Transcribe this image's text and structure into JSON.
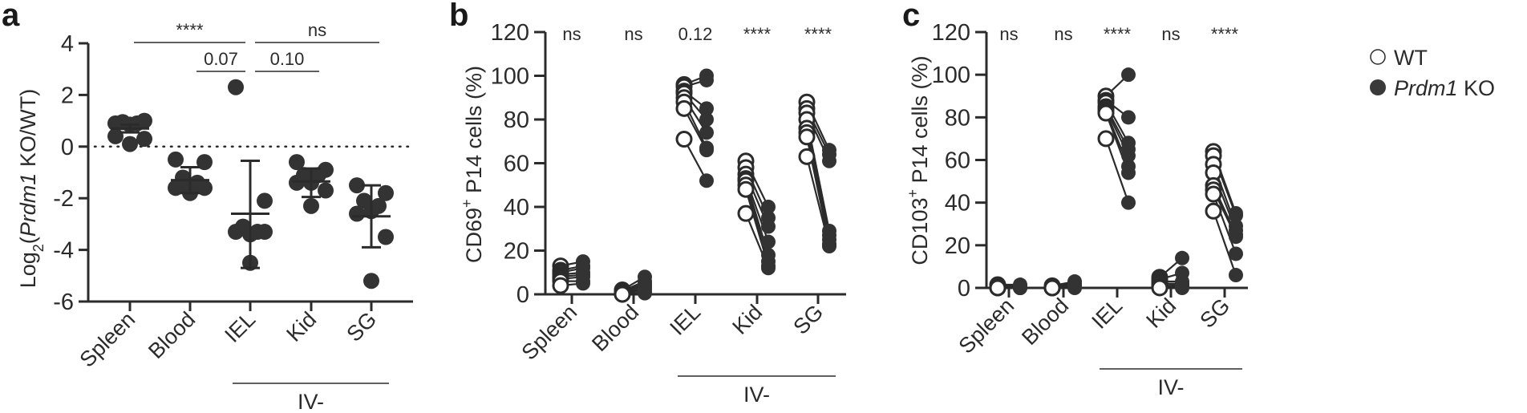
{
  "figure": {
    "panel_labels": [
      "a",
      "b",
      "c"
    ],
    "colors": {
      "ink": "#2b2b2b",
      "background": "#ffffff",
      "open_marker_fill": "#ffffff"
    },
    "legend": {
      "items": [
        {
          "label": "WT",
          "italic_prefix": "",
          "marker": "open-circle"
        },
        {
          "label": "KO",
          "italic_prefix": "Prdm1",
          "marker": "filled-circle"
        }
      ]
    },
    "group_bracket_label": "IV-"
  },
  "chart_data": [
    {
      "panel": "a",
      "type": "scatter",
      "title": "",
      "ylabel": "Log2(Prdm1 KO/WT)",
      "ylabel_parts": {
        "prefix": "Log",
        "sub": "2",
        "open": "(",
        "italic": "Prdm1",
        "rest": " KO/WT)"
      },
      "xlabel": "",
      "ylim": [
        -6,
        4
      ],
      "yticks": [
        4,
        2,
        0,
        -2,
        -4,
        -6
      ],
      "reference_line": {
        "y": 0,
        "style": "dotted"
      },
      "categories": [
        "Spleen",
        "Blood",
        "IEL",
        "Kid",
        "SG"
      ],
      "group_bracket": {
        "label": "IV-",
        "categories": [
          "IEL",
          "Kid",
          "SG"
        ]
      },
      "series": [
        {
          "name": "Spleen",
          "values": [
            0.9,
            1.0,
            0.95,
            0.9,
            0.85,
            0.4,
            0.3,
            0.1
          ],
          "mean": 0.7,
          "sd_low": 0.55,
          "sd_high": 0.85
        },
        {
          "name": "Blood",
          "values": [
            -0.5,
            -0.6,
            -1.2,
            -1.4,
            -1.5,
            -1.6,
            -1.6,
            -1.8
          ],
          "mean": -1.3,
          "sd_low": -1.8,
          "sd_high": -0.8
        },
        {
          "name": "IEL",
          "values": [
            2.3,
            -2.1,
            -3.1,
            -3.3,
            -3.4,
            -3.3,
            -3.3,
            -4.5
          ],
          "mean": -2.6,
          "sd_low": -4.7,
          "sd_high": -0.55
        },
        {
          "name": "Kid",
          "values": [
            -0.6,
            -0.9,
            -1.1,
            -1.1,
            -1.4,
            -1.4,
            -1.7,
            -2.3
          ],
          "mean": -1.35,
          "sd_low": -1.95,
          "sd_high": -0.85
        },
        {
          "name": "SG",
          "values": [
            -1.5,
            -1.8,
            -2.1,
            -2.3,
            -2.5,
            -2.6,
            -3.5,
            -5.2
          ],
          "mean": -2.7,
          "sd_low": -3.9,
          "sd_high": -1.5
        }
      ],
      "significance": [
        {
          "from": "Spleen",
          "to": "IEL",
          "label": "****",
          "level": 1
        },
        {
          "from": "IEL",
          "to": "SG",
          "label": "ns",
          "level": 1
        },
        {
          "from": "Blood",
          "to": "IEL",
          "label": "0.07",
          "level": 2
        },
        {
          "from": "IEL",
          "to": "Kid",
          "label": "0.10",
          "level": 2
        }
      ]
    },
    {
      "panel": "b",
      "type": "scatter",
      "subtype": "paired",
      "title": "",
      "ylabel": "CD69+ P14 cells (%)",
      "ylabel_parts": {
        "main": "CD69",
        "sup": "+",
        "rest": " P14 cells (%)"
      },
      "xlabel": "",
      "ylim": [
        0,
        120
      ],
      "yticks": [
        0,
        20,
        40,
        60,
        80,
        100,
        120
      ],
      "categories": [
        "Spleen",
        "Blood",
        "IEL",
        "Kid",
        "SG"
      ],
      "group_bracket": {
        "label": "IV-",
        "categories": [
          "IEL",
          "Kid",
          "SG"
        ]
      },
      "significance_labels": [
        "ns",
        "ns",
        "0.12",
        "****",
        "****"
      ],
      "series": [
        {
          "name": "WT",
          "marker": "open",
          "values": {
            "Spleen": [
              13,
              11,
              10,
              9,
              8,
              7,
              6,
              4
            ],
            "Blood": [
              2,
              1.5,
              1,
              1,
              0.5,
              0.5,
              0,
              0
            ],
            "IEL": [
              96,
              95,
              93,
              92,
              90,
              88,
              85,
              71
            ],
            "Kid": [
              61,
              58,
              55,
              53,
              52,
              50,
              48,
              37
            ],
            "SG": [
              88,
              85,
              83,
              80,
              76,
              74,
              72,
              63
            ]
          }
        },
        {
          "name": "Prdm1 KO",
          "marker": "filled",
          "values": {
            "Spleen": [
              15,
              13,
              12,
              10,
              9,
              8,
              6,
              5
            ],
            "Blood": [
              8,
              6,
              5,
              4,
              3,
              2,
              1,
              0.5
            ],
            "IEL": [
              100,
              98,
              85,
              80,
              74,
              67,
              66,
              52
            ],
            "Kid": [
              40,
              35,
              31,
              24,
              18,
              15,
              13,
              12
            ],
            "SG": [
              66,
              64,
              61,
              29,
              27,
              25,
              23,
              22
            ]
          }
        }
      ]
    },
    {
      "panel": "c",
      "type": "scatter",
      "subtype": "paired",
      "title": "",
      "ylabel": "CD103+ P14 cells (%)",
      "ylabel_parts": {
        "main": "CD103",
        "sup": "+",
        "rest": " P14 cells (%)"
      },
      "xlabel": "",
      "ylim": [
        0,
        120
      ],
      "yticks": [
        0,
        20,
        40,
        60,
        80,
        100,
        120
      ],
      "categories": [
        "Spleen",
        "Blood",
        "IEL",
        "Kid",
        "SG"
      ],
      "group_bracket": {
        "label": "IV-",
        "categories": [
          "IEL",
          "Kid",
          "SG"
        ]
      },
      "significance_labels": [
        "ns",
        "ns",
        "****",
        "ns",
        "****"
      ],
      "series": [
        {
          "name": "WT",
          "marker": "open",
          "values": {
            "Spleen": [
              1.5,
              1,
              1,
              0.5,
              0.5,
              0,
              0,
              0
            ],
            "Blood": [
              1,
              0.5,
              0.5,
              0,
              0,
              0,
              0,
              0
            ],
            "IEL": [
              90,
              88,
              87,
              85,
              84,
              83,
              82,
              70
            ],
            "Kid": [
              5,
              4,
              3,
              2,
              2,
              1,
              0.5,
              0
            ],
            "SG": [
              64,
              62,
              58,
              54,
              48,
              46,
              44,
              36
            ]
          }
        },
        {
          "name": "Prdm1 KO",
          "marker": "filled",
          "values": {
            "Spleen": [
              1.5,
              1,
              1,
              0.5,
              0.5,
              0,
              0,
              0
            ],
            "Blood": [
              3,
              2.5,
              2,
              1.5,
              1,
              0.5,
              0.5,
              0
            ],
            "IEL": [
              100,
              80,
              68,
              65,
              62,
              57,
              54,
              40
            ],
            "Kid": [
              14,
              7,
              3,
              2,
              1.5,
              1,
              0.5,
              0
            ],
            "SG": [
              35,
              34,
              29,
              27,
              25,
              24,
              16,
              6
            ]
          }
        }
      ]
    }
  ]
}
